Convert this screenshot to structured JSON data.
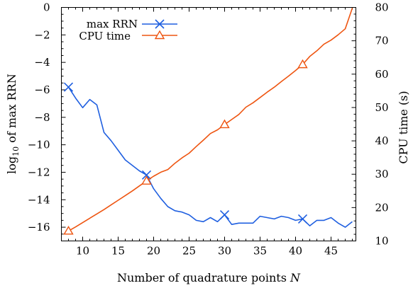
{
  "chart_data": {
    "type": "line",
    "xlabel_main": "Number of quadrature points ",
    "xlabel_var": "N",
    "ylabel_left_prefix": "log",
    "ylabel_left_sub": "10",
    "ylabel_left_suffix": " of max RRN",
    "ylabel_right": "CPU time (s)",
    "xlim": [
      7,
      48.5
    ],
    "ylim_left": [
      -17,
      0
    ],
    "ylim_right": [
      10,
      80
    ],
    "x_ticks": [
      10,
      15,
      20,
      25,
      30,
      35,
      40,
      45
    ],
    "y_left_ticks": [
      0,
      -2,
      -4,
      -6,
      -8,
      -10,
      -12,
      -14,
      -16
    ],
    "y_right_ticks": [
      10,
      20,
      30,
      40,
      50,
      60,
      70,
      80
    ],
    "legend_position": "top-left",
    "series": [
      {
        "name": "max RRN",
        "axis": "left",
        "color": "#1f5fe0",
        "marker": "x-cross",
        "marker_x": [
          8,
          19,
          30,
          41
        ],
        "x": [
          8,
          9,
          10,
          11,
          12,
          13,
          14,
          15,
          16,
          17,
          18,
          19,
          20,
          21,
          22,
          23,
          24,
          25,
          26,
          27,
          28,
          29,
          30,
          31,
          32,
          33,
          34,
          35,
          36,
          37,
          38,
          39,
          40,
          41,
          42,
          43,
          44,
          45,
          46,
          47,
          48
        ],
        "values": [
          -5.8,
          -6.6,
          -7.3,
          -6.7,
          -7.1,
          -9.1,
          -9.7,
          -10.4,
          -11.1,
          -11.5,
          -11.9,
          -12.2,
          -13.2,
          -13.9,
          -14.5,
          -14.8,
          -14.9,
          -15.1,
          -15.5,
          -15.6,
          -15.3,
          -15.6,
          -15.1,
          -15.8,
          -15.7,
          -15.7,
          -15.7,
          -15.2,
          -15.3,
          -15.4,
          -15.2,
          -15.3,
          -15.5,
          -15.4,
          -15.9,
          -15.5,
          -15.5,
          -15.3,
          -15.7,
          -16.0,
          -15.6
        ]
      },
      {
        "name": "CPU time",
        "axis": "right",
        "color": "#ee5511",
        "marker": "triangle",
        "marker_x": [
          8,
          19,
          30,
          41
        ],
        "x": [
          8,
          9,
          10,
          11,
          12,
          13,
          14,
          15,
          16,
          17,
          18,
          19,
          20,
          21,
          22,
          23,
          24,
          25,
          26,
          27,
          28,
          29,
          30,
          31,
          32,
          33,
          34,
          35,
          36,
          37,
          38,
          39,
          40,
          41,
          42,
          43,
          44,
          45,
          46,
          47,
          48
        ],
        "values": [
          13.0,
          14.2,
          15.5,
          16.8,
          18.1,
          19.4,
          20.8,
          22.2,
          23.6,
          25.0,
          26.5,
          28.0,
          29.4,
          30.6,
          31.4,
          33.3,
          34.9,
          36.3,
          38.3,
          40.2,
          42.2,
          43.3,
          44.9,
          46.4,
          47.9,
          50.1,
          51.4,
          53.0,
          54.6,
          56.1,
          57.8,
          59.4,
          61.1,
          62.9,
          65.3,
          67.0,
          69.0,
          70.2,
          71.8,
          73.6,
          79.8
        ]
      }
    ]
  }
}
